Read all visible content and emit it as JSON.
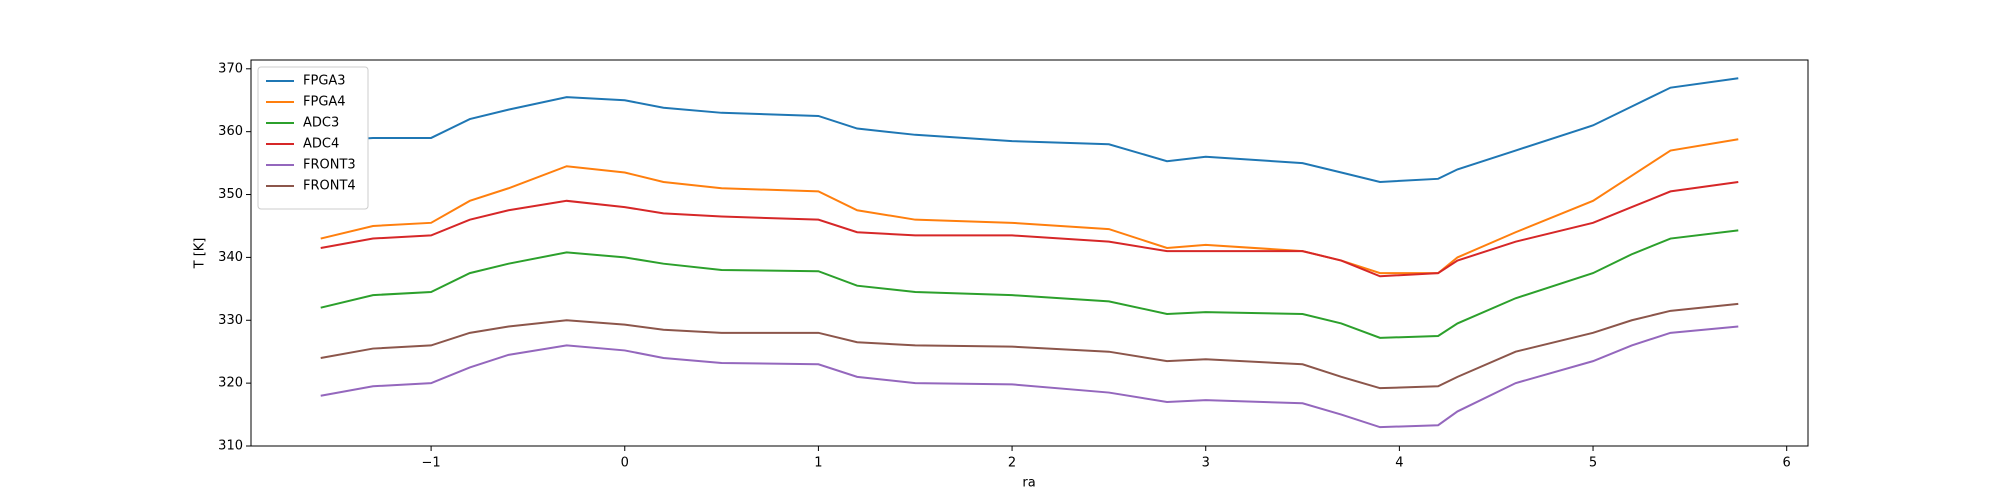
{
  "chart_data": {
    "type": "line",
    "xlabel": "ra",
    "ylabel": "T [K]",
    "x": [
      -1.57,
      -1.3,
      -1,
      -0.8,
      -0.6,
      -0.3,
      0,
      0.2,
      0.5,
      1,
      1.2,
      1.5,
      2,
      2.5,
      2.8,
      3,
      3.5,
      3.7,
      3.9,
      4.2,
      4.3,
      4.6,
      5,
      5.2,
      5.4,
      5.75
    ],
    "series": [
      {
        "name": "FPGA3",
        "color": "#1f77b4",
        "values": [
          358.5,
          359,
          359,
          362,
          363.5,
          365.5,
          365,
          363.8,
          363,
          362.5,
          360.5,
          359.5,
          358.5,
          358,
          355.3,
          356,
          355,
          353.5,
          352,
          352.5,
          354,
          357,
          361,
          364,
          367,
          368.5
        ]
      },
      {
        "name": "FPGA4",
        "color": "#ff7f0e",
        "values": [
          343,
          345,
          345.5,
          349,
          351,
          354.5,
          353.5,
          352,
          351,
          350.5,
          347.5,
          346,
          345.5,
          344.5,
          341.5,
          342,
          341,
          339.5,
          337.5,
          337.5,
          340,
          344,
          349,
          353,
          357,
          358.8
        ]
      },
      {
        "name": "ADC3",
        "color": "#2ca02c",
        "values": [
          332,
          334,
          334.5,
          337.5,
          339,
          340.8,
          340,
          339,
          338,
          337.8,
          335.5,
          334.5,
          334,
          333,
          331,
          331.3,
          331,
          329.5,
          327.2,
          327.5,
          329.5,
          333.5,
          337.5,
          340.5,
          343,
          344.3
        ]
      },
      {
        "name": "ADC4",
        "color": "#d62728",
        "values": [
          341.5,
          343,
          343.5,
          346,
          347.5,
          349,
          348,
          347,
          346.5,
          346,
          344,
          343.5,
          343.5,
          342.5,
          341,
          341,
          341,
          339.5,
          337,
          337.5,
          339.5,
          342.5,
          345.5,
          348,
          350.5,
          352
        ]
      },
      {
        "name": "FRONT3",
        "color": "#9467bd",
        "values": [
          318,
          319.5,
          320,
          322.5,
          324.5,
          326,
          325.2,
          324,
          323.2,
          323,
          321,
          320,
          319.8,
          318.5,
          317,
          317.3,
          316.8,
          315,
          313,
          313.3,
          315.5,
          320,
          323.5,
          326,
          328,
          329
        ]
      },
      {
        "name": "FRONT4",
        "color": "#8c564b",
        "values": [
          324,
          325.5,
          326,
          328,
          329,
          330,
          329.3,
          328.5,
          328,
          328,
          326.5,
          326,
          325.8,
          325,
          323.5,
          323.8,
          323,
          321,
          319.2,
          319.5,
          321,
          325,
          328,
          330,
          331.5,
          332.6
        ]
      }
    ],
    "xlim": [
      -1.93,
      6.11
    ],
    "ylim": [
      310,
      371.4
    ],
    "xticks": [
      {
        "value": -1,
        "label": "−1"
      },
      0,
      1,
      2,
      3,
      4,
      5,
      6
    ],
    "yticks": [
      310,
      320,
      330,
      340,
      350,
      360,
      370
    ],
    "legend": "upper left",
    "grid": false
  }
}
